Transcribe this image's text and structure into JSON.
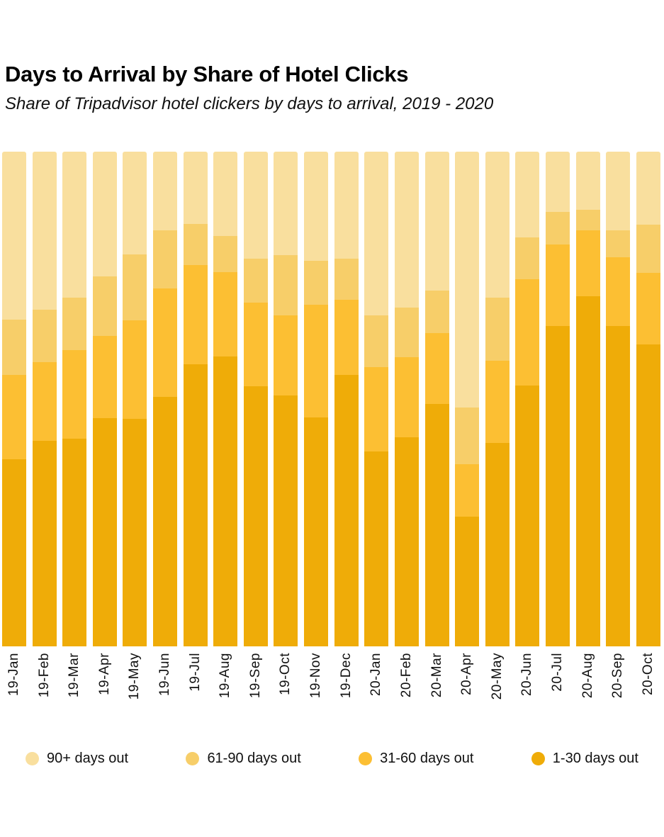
{
  "header": {
    "title": "Days to Arrival by Share of Hotel Clicks",
    "subtitle": "Share of Tripadvisor hotel clickers by days to arrival, 2019 - 2020"
  },
  "colors": {
    "days_90_plus": "#F9DF9E",
    "days_61_90": "#F7CE69",
    "days_31_60": "#FCBF33",
    "days_1_30": "#EFAC08",
    "text": "#101010",
    "background": "#FFFFFF"
  },
  "chart_data": {
    "type": "bar",
    "stacked": true,
    "percent": true,
    "grid": false,
    "legend_position": "bottom",
    "ylim": [
      0,
      100
    ],
    "title": "Days to Arrival by Share of Hotel Clicks",
    "subtitle": "Share of Tripadvisor hotel clickers by days to arrival, 2019 - 2020",
    "xlabel": "",
    "ylabel": "",
    "categories": [
      "19-Jan",
      "19-Feb",
      "19-Mar",
      "19-Apr",
      "19-May",
      "19-Jun",
      "19-Jul",
      "19-Aug",
      "19-Sep",
      "19-Oct",
      "19-Nov",
      "19-Dec",
      "20-Jan",
      "20-Feb",
      "20-Mar",
      "20-Apr",
      "20-May",
      "20-Jun",
      "20-Jul",
      "20-Aug",
      "20-Sep",
      "20-Oct"
    ],
    "series": [
      {
        "name": "90+ days out",
        "color": "#F9DF9E",
        "values": [
          34.0,
          31.9,
          29.5,
          25.2,
          20.8,
          15.9,
          14.6,
          17.0,
          21.6,
          20.9,
          22.1,
          21.6,
          33.1,
          31.5,
          28.1,
          51.7,
          29.5,
          17.3,
          12.2,
          11.7,
          15.9,
          14.8
        ]
      },
      {
        "name": "61-90 days out",
        "color": "#F7CE69",
        "values": [
          11.2,
          10.7,
          10.6,
          12.0,
          13.3,
          11.7,
          8.3,
          7.4,
          8.9,
          12.2,
          8.9,
          8.3,
          10.5,
          10.0,
          8.6,
          11.5,
          12.8,
          8.5,
          6.6,
          4.2,
          5.4,
          9.7
        ]
      },
      {
        "name": "31-60 days out",
        "color": "#FCBF33",
        "values": [
          17.0,
          15.8,
          17.9,
          16.6,
          19.9,
          21.9,
          20.1,
          17.0,
          16.9,
          16.2,
          22.8,
          15.2,
          17.0,
          16.2,
          14.3,
          10.6,
          16.6,
          21.5,
          16.5,
          13.3,
          13.9,
          14.5
        ]
      },
      {
        "name": "1-30 days out",
        "color": "#EFAC08",
        "values": [
          37.8,
          41.6,
          42.0,
          46.2,
          46.0,
          50.5,
          57.0,
          58.5,
          52.6,
          50.7,
          46.3,
          54.9,
          39.4,
          42.3,
          49.0,
          26.2,
          41.1,
          52.7,
          64.8,
          70.8,
          64.8,
          61.0
        ]
      }
    ]
  }
}
